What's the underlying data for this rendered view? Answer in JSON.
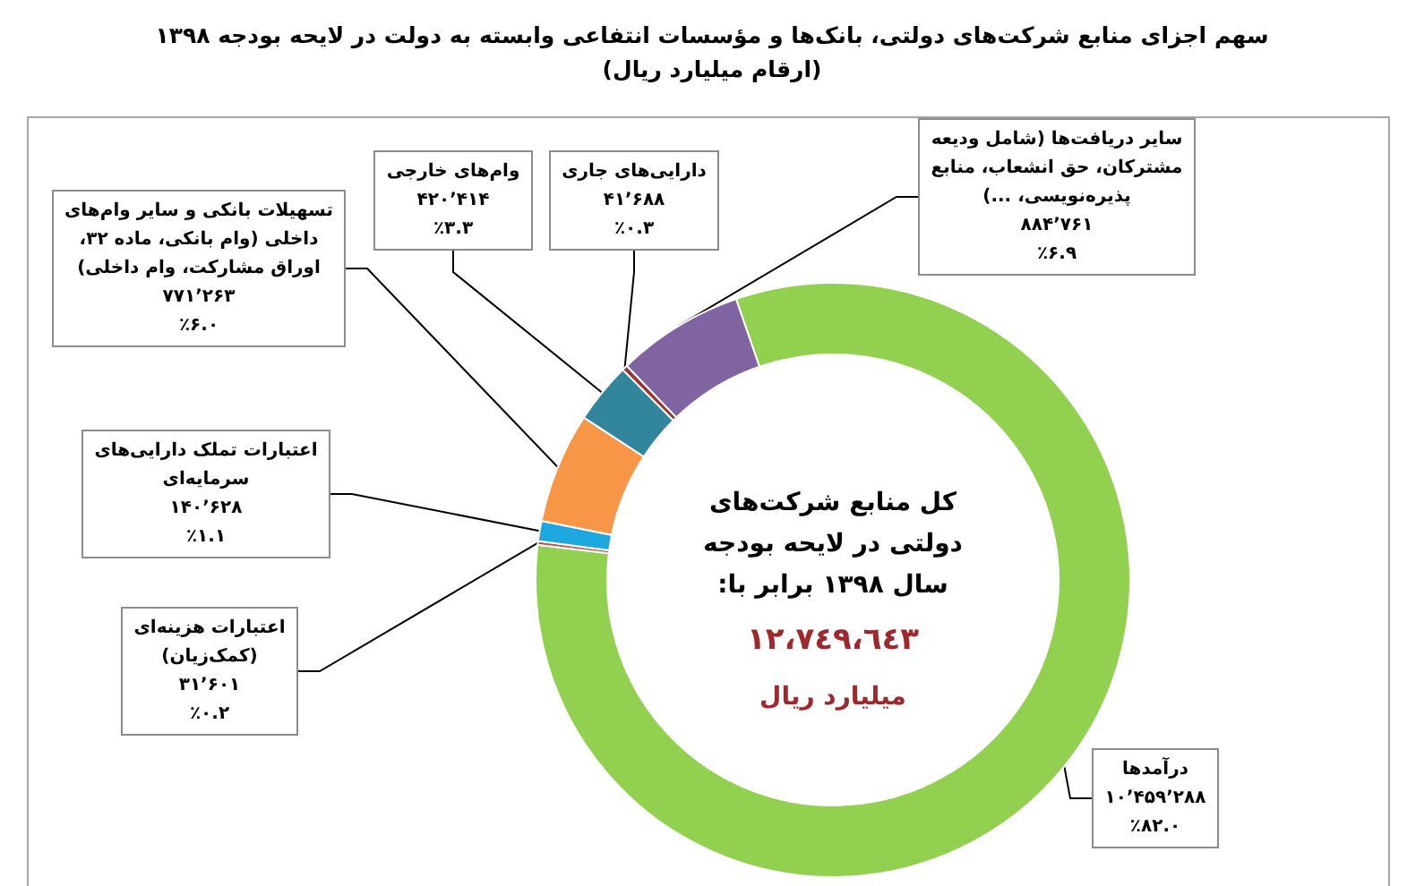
{
  "chart_data": {
    "type": "donut",
    "title": "سهم اجزای منابع شرکت‌های دولتی، بانک‌ها و مؤسسات انتفاعی وابسته به دولت در لایحه بودجه ۱۳۹۸",
    "subtitle": "(ارقام میلیارد ریال)",
    "categories": [
      "درآمدها",
      "اعتبارات هزینه‌ای (کمک‌زیان)",
      "اعتبارات تملک دارایی‌های سرمایه‌ای",
      "تسهیلات بانکی و سایر وام‌های داخلی (وام بانکی، ماده ۳۲، اوراق مشارکت، وام داخلی)",
      "وام‌های خارجی",
      "دارایی‌های جاری",
      "سایر دریافت‌ها (شامل ودیعه مشترکان، حق انشعاب، منابع پذیره‌نویسی، ...)"
    ],
    "values": [
      82.0,
      0.2,
      1.1,
      6.0,
      3.3,
      0.3,
      6.9
    ],
    "colors": [
      "#92d050",
      "#c0504d",
      "#1ea8e0",
      "#f79646",
      "#31859c",
      "#953735",
      "#8064a2"
    ],
    "value_labels": [
      "۱۰٬۴۵۹٬۲۸۸\n٪۸۲.۰",
      "۳۱٬۶۰۱\n٪۰.۲",
      "۱۴۰٬۶۲۸\n٪۱.۱",
      "۷۷۱٬۲۶۳\n٪۶.۰",
      "۴۲۰٬۴۱۴\n٪۳.۳",
      "۴۱٬۶۸۸\n٪۰.۳",
      "۸۸۴٬۷۶۱\n٪۶.۹"
    ],
    "annotations": [
      "کل منابع شرکت‌های دولتی در لایحه بودجه سال ۱۳۹۸ برابر با:",
      "١٢،٧٤٩،٦٤٣",
      "میلیارد ریال"
    ]
  }
}
